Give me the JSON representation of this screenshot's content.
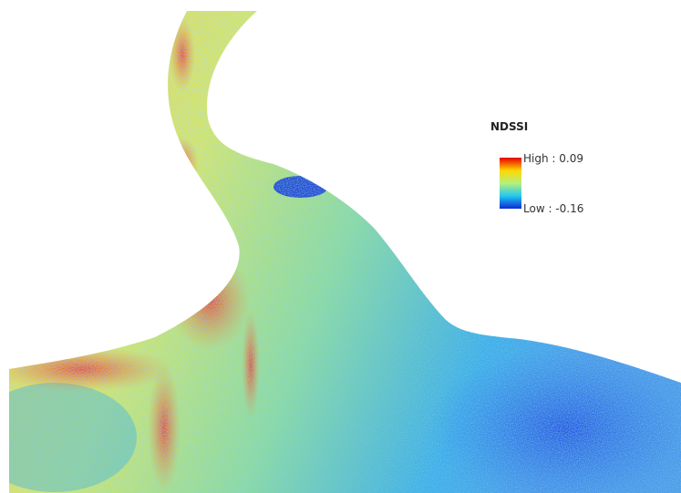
{
  "legend": {
    "title": "NDSSI",
    "high_label": "High : 0.09",
    "low_label": "Low : -0.16"
  }
}
